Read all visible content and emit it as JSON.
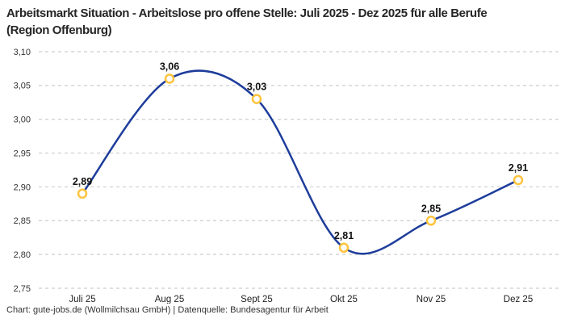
{
  "header": {
    "title": "Arbeitsmarkt Situation - Arbeitslose pro offene Stelle: Juli 2025 - Dez 2025 für alle Berufe (Region Offenburg)"
  },
  "footer": {
    "credit": "Chart: gute-jobs.de (Wollmilchsau GmbH) | Datenquelle: Bundesagentur für Arbeit"
  },
  "chart_data": {
    "type": "line",
    "title": "Arbeitsmarkt Situation - Arbeitslose pro offene Stelle: Juli 2025 - Dez 2025 für alle Berufe (Region Offenburg)",
    "categories": [
      "Juli 25",
      "Aug 25",
      "Sept 25",
      "Okt 25",
      "Nov 25",
      "Dez 25"
    ],
    "values": [
      2.89,
      3.06,
      3.03,
      2.81,
      2.85,
      2.91
    ],
    "value_labels": [
      "2,89",
      "3,06",
      "3,03",
      "2,81",
      "2,85",
      "2,91"
    ],
    "xlabel": "",
    "ylabel": "",
    "ylim": [
      2.75,
      3.1
    ],
    "ytick_step": 0.05,
    "ytick_labels": [
      "2,75",
      "2,80",
      "2,85",
      "2,90",
      "2,95",
      "3,00",
      "3,05",
      "3,10"
    ],
    "grid": "dashed-horizontal",
    "legend": "none",
    "line_style": "smooth-spline",
    "marker_style": "open-circle",
    "colors": {
      "line": "#1e3d9b",
      "marker": "#ffc43d",
      "marker_fill": "#ffffff",
      "grid": "#cdcdcd",
      "ytick_text": "#333333",
      "xtick_text": "#222222",
      "data_label": "#111111",
      "background": "#ffffff"
    }
  }
}
